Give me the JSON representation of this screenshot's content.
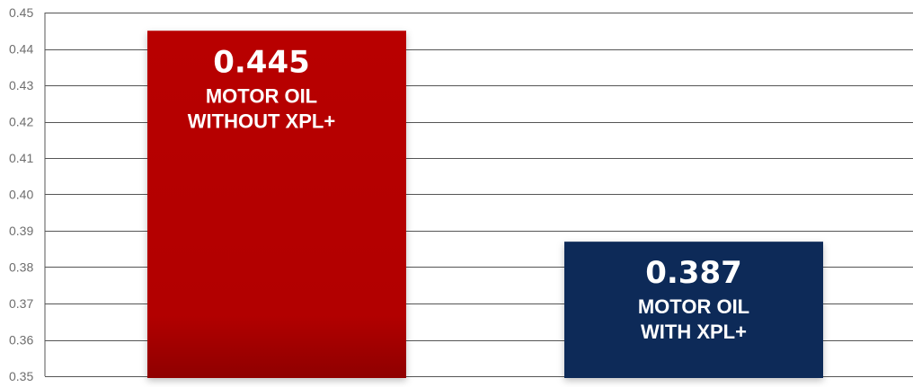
{
  "chart_data": {
    "type": "bar",
    "title": "",
    "xlabel": "",
    "ylabel": "",
    "ylim": [
      0.35,
      0.45
    ],
    "yticks": [
      "0.35",
      "0.36",
      "0.37",
      "0.38",
      "0.39",
      "0.40",
      "0.41",
      "0.42",
      "0.43",
      "0.44",
      "0.45"
    ],
    "grid": true,
    "bars": [
      {
        "value": 0.445,
        "value_label": "0.445",
        "label_lines": [
          "MOTOR OIL",
          "WITHOUT XPL+"
        ],
        "color": "#b50000"
      },
      {
        "value": 0.387,
        "value_label": "0.387",
        "label_lines": [
          "MOTOR OIL",
          "WITH XPL+"
        ],
        "color": "#0c2a58"
      }
    ]
  }
}
